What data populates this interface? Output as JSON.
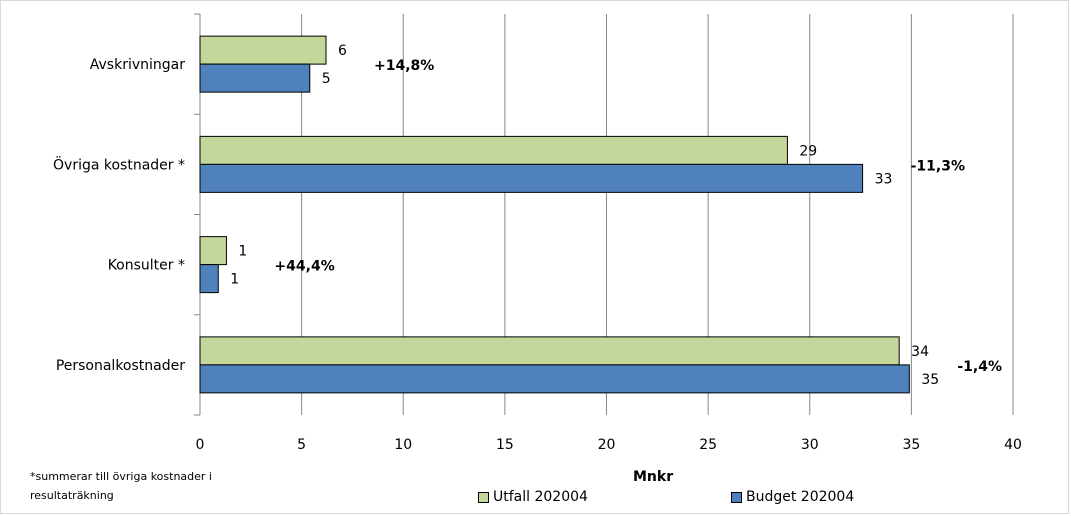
{
  "chart_data": {
    "type": "bar",
    "orientation": "horizontal",
    "categories": [
      "Avskrivningar",
      "Övriga kostnader *",
      "Konsulter *",
      "Personalkostnader"
    ],
    "series": [
      {
        "name": "Utfall 202004",
        "values": [
          6.2,
          28.9,
          1.3,
          34.4
        ],
        "value_labels": [
          "6",
          "29",
          "1",
          "34"
        ],
        "color": "#c4d79b"
      },
      {
        "name": "Budget 202004",
        "values": [
          5.4,
          32.6,
          0.9,
          34.9
        ],
        "value_labels": [
          "5",
          "33",
          "1",
          "35"
        ],
        "color": "#4f81bd"
      }
    ],
    "change_labels": [
      "+14,8%",
      "-11,3%",
      "+44,4%",
      "-1,4%"
    ],
    "xlabel": "Mnkr",
    "ylabel": "",
    "xlim": [
      0,
      40
    ],
    "xticks": [
      0,
      5,
      10,
      15,
      20,
      25,
      30,
      35,
      40
    ],
    "grid": true,
    "legend": "bottom",
    "footnote": [
      "*summerar till övriga kostnader i",
      "resultaträkning"
    ]
  }
}
